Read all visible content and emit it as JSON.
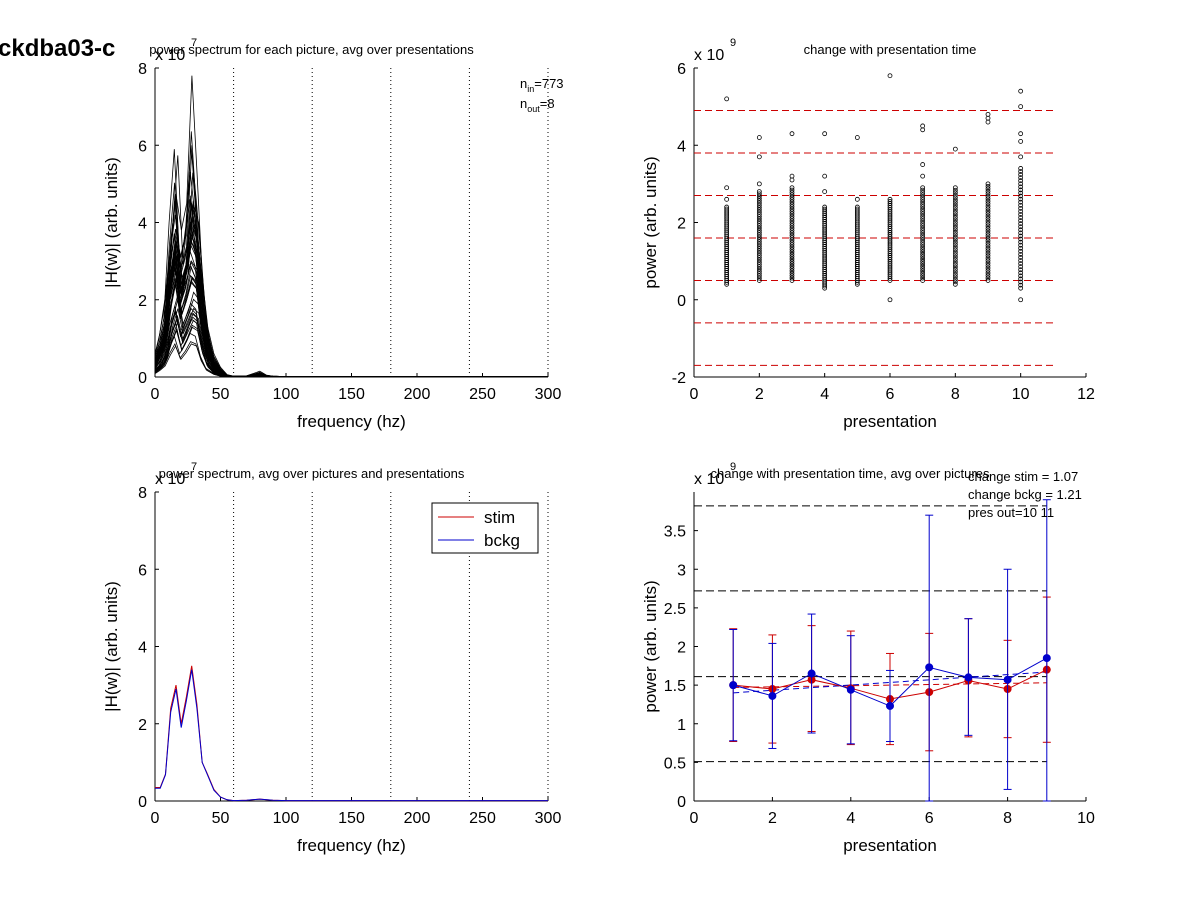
{
  "figure_title": "ckdba03-c",
  "chart_data": [
    {
      "id": "p1",
      "type": "line",
      "title": "power spectrum for each picture, avg over presentations",
      "xlabel": "frequency (hz)",
      "ylabel": "|H(w)| (arb. units)",
      "xlim": [
        0,
        300
      ],
      "ylim": [
        0,
        8
      ],
      "xticks": [
        "0",
        "50",
        "100",
        "150",
        "200",
        "250",
        "300"
      ],
      "yticks": [
        "0",
        "2",
        "4",
        "6",
        "8"
      ],
      "exponent": {
        "base": "x 10",
        "power": "7"
      },
      "vlines": [
        60,
        120,
        180,
        240,
        300
      ],
      "annotation": {
        "n_in_base": "n",
        "n_in_sub": "in",
        "n_in_val": "=773",
        "n_out_base": "n",
        "n_out_sub": "out",
        "n_out_val": "=8"
      },
      "line_color": "#000000",
      "x": [
        0,
        4,
        8,
        12,
        16,
        20,
        24,
        28,
        32,
        36,
        40,
        45,
        50,
        55,
        60,
        70,
        80,
        85,
        90,
        100,
        150,
        200,
        250,
        300
      ],
      "envelope_series": [
        [
          0.5,
          1.0,
          1.8,
          3.6,
          4.7,
          3.8,
          4.5,
          7.8,
          5.2,
          2.5,
          1.2,
          0.5,
          0.2,
          0.05,
          0.02,
          0.03,
          0.15,
          0.05,
          0.02,
          0.01,
          0.01,
          0.01,
          0.01,
          0.01
        ],
        [
          0.4,
          0.8,
          1.5,
          4.0,
          5.9,
          3.0,
          3.6,
          4.6,
          4.1,
          2.2,
          1.0,
          0.4,
          0.15,
          0.04,
          0.02,
          0.02,
          0.08,
          0.04,
          0.02,
          0.01,
          0.01,
          0.01,
          0.01,
          0.01
        ],
        [
          0.3,
          0.6,
          1.2,
          2.6,
          3.4,
          2.2,
          2.7,
          3.5,
          3.2,
          1.8,
          0.8,
          0.3,
          0.1,
          0.03,
          0.01,
          0.02,
          0.05,
          0.03,
          0.01,
          0.01,
          0.01,
          0.01,
          0.01,
          0.01
        ],
        [
          0.2,
          0.4,
          0.8,
          1.8,
          2.4,
          1.5,
          2.0,
          2.5,
          2.3,
          1.2,
          0.5,
          0.2,
          0.07,
          0.02,
          0.01,
          0.01,
          0.04,
          0.02,
          0.01,
          0.0,
          0.0,
          0.0,
          0.0,
          0.0
        ],
        [
          0.15,
          0.3,
          0.5,
          1.0,
          1.4,
          0.8,
          1.1,
          1.5,
          1.4,
          0.7,
          0.3,
          0.12,
          0.04,
          0.01,
          0.0,
          0.01,
          0.02,
          0.01,
          0.0,
          0.0,
          0.0,
          0.0,
          0.0,
          0.0
        ],
        [
          0.6,
          1.1,
          2.0,
          3.2,
          4.2,
          2.8,
          3.9,
          6.0,
          4.6,
          2.9,
          1.4,
          0.6,
          0.25,
          0.06,
          0.02,
          0.03,
          0.1,
          0.04,
          0.02,
          0.01,
          0.01,
          0.01,
          0.01,
          0.01
        ],
        [
          0.35,
          0.7,
          1.3,
          2.9,
          3.9,
          2.4,
          3.1,
          4.1,
          3.6,
          2.0,
          0.9,
          0.35,
          0.12,
          0.03,
          0.01,
          0.02,
          0.06,
          0.03,
          0.01,
          0.01,
          0.01,
          0.01,
          0.01,
          0.01
        ],
        [
          0.25,
          0.5,
          1.0,
          2.2,
          3.0,
          1.9,
          2.4,
          3.0,
          2.8,
          1.5,
          0.6,
          0.25,
          0.08,
          0.02,
          0.01,
          0.01,
          0.04,
          0.02,
          0.01,
          0.0,
          0.0,
          0.0,
          0.0,
          0.0
        ]
      ]
    },
    {
      "id": "p2",
      "type": "scatter",
      "title": "change with presentation time",
      "xlabel": "presentation",
      "ylabel": "power (arb. units)",
      "xlim": [
        0,
        12
      ],
      "ylim": [
        -2,
        6
      ],
      "xticks": [
        "0",
        "2",
        "4",
        "6",
        "8",
        "10",
        "12"
      ],
      "yticks": [
        "-2",
        "0",
        "2",
        "4",
        "6"
      ],
      "exponent": {
        "base": "x 10",
        "power": "9"
      },
      "hlines": [
        4.9,
        3.8,
        2.7,
        1.6,
        0.5,
        -0.6,
        -1.7
      ],
      "hline_color": "#cc0000",
      "hline_xrange": [
        0,
        11
      ],
      "marker_color": "#000000",
      "columns": [
        {
          "x": 1,
          "dense": [
            0.4,
            2.4
          ],
          "outliers": [
            5.2,
            2.9,
            2.6
          ]
        },
        {
          "x": 2,
          "dense": [
            0.5,
            2.8
          ],
          "outliers": [
            4.2,
            3.7,
            3.0
          ]
        },
        {
          "x": 3,
          "dense": [
            0.5,
            2.9
          ],
          "outliers": [
            4.3,
            3.2,
            3.1
          ]
        },
        {
          "x": 4,
          "dense": [
            0.3,
            2.4
          ],
          "outliers": [
            4.3,
            3.2,
            2.8
          ]
        },
        {
          "x": 5,
          "dense": [
            0.4,
            2.4
          ],
          "outliers": [
            4.2,
            2.6
          ]
        },
        {
          "x": 6,
          "dense": [
            0.5,
            2.6
          ],
          "outliers": [
            5.8,
            0.0
          ]
        },
        {
          "x": 7,
          "dense": [
            0.5,
            2.9
          ],
          "outliers": [
            4.5,
            4.4,
            3.5,
            3.2
          ]
        },
        {
          "x": 8,
          "dense": [
            0.4,
            2.9
          ],
          "outliers": [
            3.9
          ]
        },
        {
          "x": 9,
          "dense": [
            0.5,
            3.0
          ],
          "outliers": [
            4.8,
            4.7,
            4.6
          ]
        },
        {
          "x": 10,
          "dense": [
            0.3,
            3.4
          ],
          "outliers": [
            5.4,
            5.0,
            4.3,
            4.1,
            3.7,
            0.0
          ]
        }
      ]
    },
    {
      "id": "p3",
      "type": "line",
      "title": "power spectrum, avg over pictures and presentations",
      "xlabel": "frequency (hz)",
      "ylabel": "|H(w)| (arb. units)",
      "xlim": [
        0,
        300
      ],
      "ylim": [
        0,
        8
      ],
      "xticks": [
        "0",
        "50",
        "100",
        "150",
        "200",
        "250",
        "300"
      ],
      "yticks": [
        "0",
        "2",
        "4",
        "6",
        "8"
      ],
      "exponent": {
        "base": "x 10",
        "power": "7"
      },
      "vlines": [
        60,
        120,
        180,
        240,
        300
      ],
      "legend": {
        "position": "top-right"
      },
      "series": [
        {
          "name": "stim",
          "color": "#cc0000",
          "x": [
            0,
            4,
            8,
            12,
            16,
            20,
            24,
            28,
            32,
            36,
            40,
            45,
            50,
            55,
            60,
            70,
            80,
            90,
            100,
            150,
            200,
            250,
            300
          ],
          "values": [
            0.35,
            0.35,
            0.7,
            2.4,
            3.0,
            2.0,
            2.7,
            3.5,
            2.5,
            1.0,
            0.7,
            0.3,
            0.1,
            0.03,
            0.01,
            0.02,
            0.05,
            0.02,
            0.01,
            0.01,
            0.01,
            0.01,
            0.01
          ]
        },
        {
          "name": "bckg",
          "color": "#0000cc",
          "x": [
            0,
            4,
            8,
            12,
            16,
            20,
            24,
            28,
            32,
            36,
            40,
            45,
            50,
            55,
            60,
            70,
            80,
            90,
            100,
            150,
            200,
            250,
            300
          ],
          "values": [
            0.33,
            0.33,
            0.68,
            2.3,
            2.9,
            1.9,
            2.6,
            3.4,
            2.4,
            1.0,
            0.68,
            0.28,
            0.1,
            0.03,
            0.01,
            0.02,
            0.05,
            0.02,
            0.01,
            0.01,
            0.01,
            0.01,
            0.01
          ]
        }
      ]
    },
    {
      "id": "p4",
      "type": "line",
      "title": "change with presentation time, avg over pictures",
      "xlabel": "presentation",
      "ylabel": "power (arb. units)",
      "xlim": [
        0,
        10
      ],
      "ylim": [
        0,
        4
      ],
      "xticks": [
        "0",
        "2",
        "4",
        "6",
        "8",
        "10"
      ],
      "yticks": [
        "0",
        "0.5",
        "1",
        "1.5",
        "2",
        "2.5",
        "3",
        "3.5"
      ],
      "ytick_values": [
        0,
        0.5,
        1,
        1.5,
        2,
        2.5,
        3,
        3.5
      ],
      "exponent": {
        "base": "x 10",
        "power": "9"
      },
      "annotations": [
        "change stim = 1.07",
        "change bckg = 1.21",
        "pres out=10 11"
      ],
      "hlines": [
        3.82,
        2.72,
        1.61,
        0.51
      ],
      "hline_xrange": [
        0,
        9
      ],
      "trend_lines": [
        {
          "color": "#cc0000",
          "x": [
            1,
            9
          ],
          "y": [
            1.47,
            1.53
          ]
        },
        {
          "color": "#0000cc",
          "x": [
            1,
            9
          ],
          "y": [
            1.4,
            1.67
          ]
        }
      ],
      "series": [
        {
          "name": "stim",
          "color": "#cc0000",
          "x": [
            1,
            2,
            3,
            4,
            5,
            6,
            7,
            8,
            9
          ],
          "values": [
            1.5,
            1.45,
            1.57,
            1.46,
            1.32,
            1.41,
            1.56,
            1.45,
            1.7
          ],
          "err_low": [
            0.77,
            0.75,
            0.9,
            0.73,
            0.73,
            0.65,
            0.83,
            0.82,
            0.76
          ],
          "err_high": [
            2.23,
            2.15,
            2.27,
            2.2,
            1.91,
            2.17,
            2.36,
            2.08,
            2.64
          ]
        },
        {
          "name": "bckg",
          "color": "#0000cc",
          "x": [
            1,
            2,
            3,
            4,
            5,
            6,
            7,
            8,
            9
          ],
          "values": [
            1.5,
            1.36,
            1.65,
            1.44,
            1.23,
            1.73,
            1.6,
            1.57,
            1.85
          ],
          "err_low": [
            0.78,
            0.68,
            0.88,
            0.74,
            0.77,
            0.0,
            0.85,
            0.15,
            0.0
          ],
          "err_high": [
            2.22,
            2.04,
            2.42,
            2.14,
            1.69,
            3.7,
            2.36,
            3.0,
            3.9
          ]
        }
      ]
    }
  ]
}
